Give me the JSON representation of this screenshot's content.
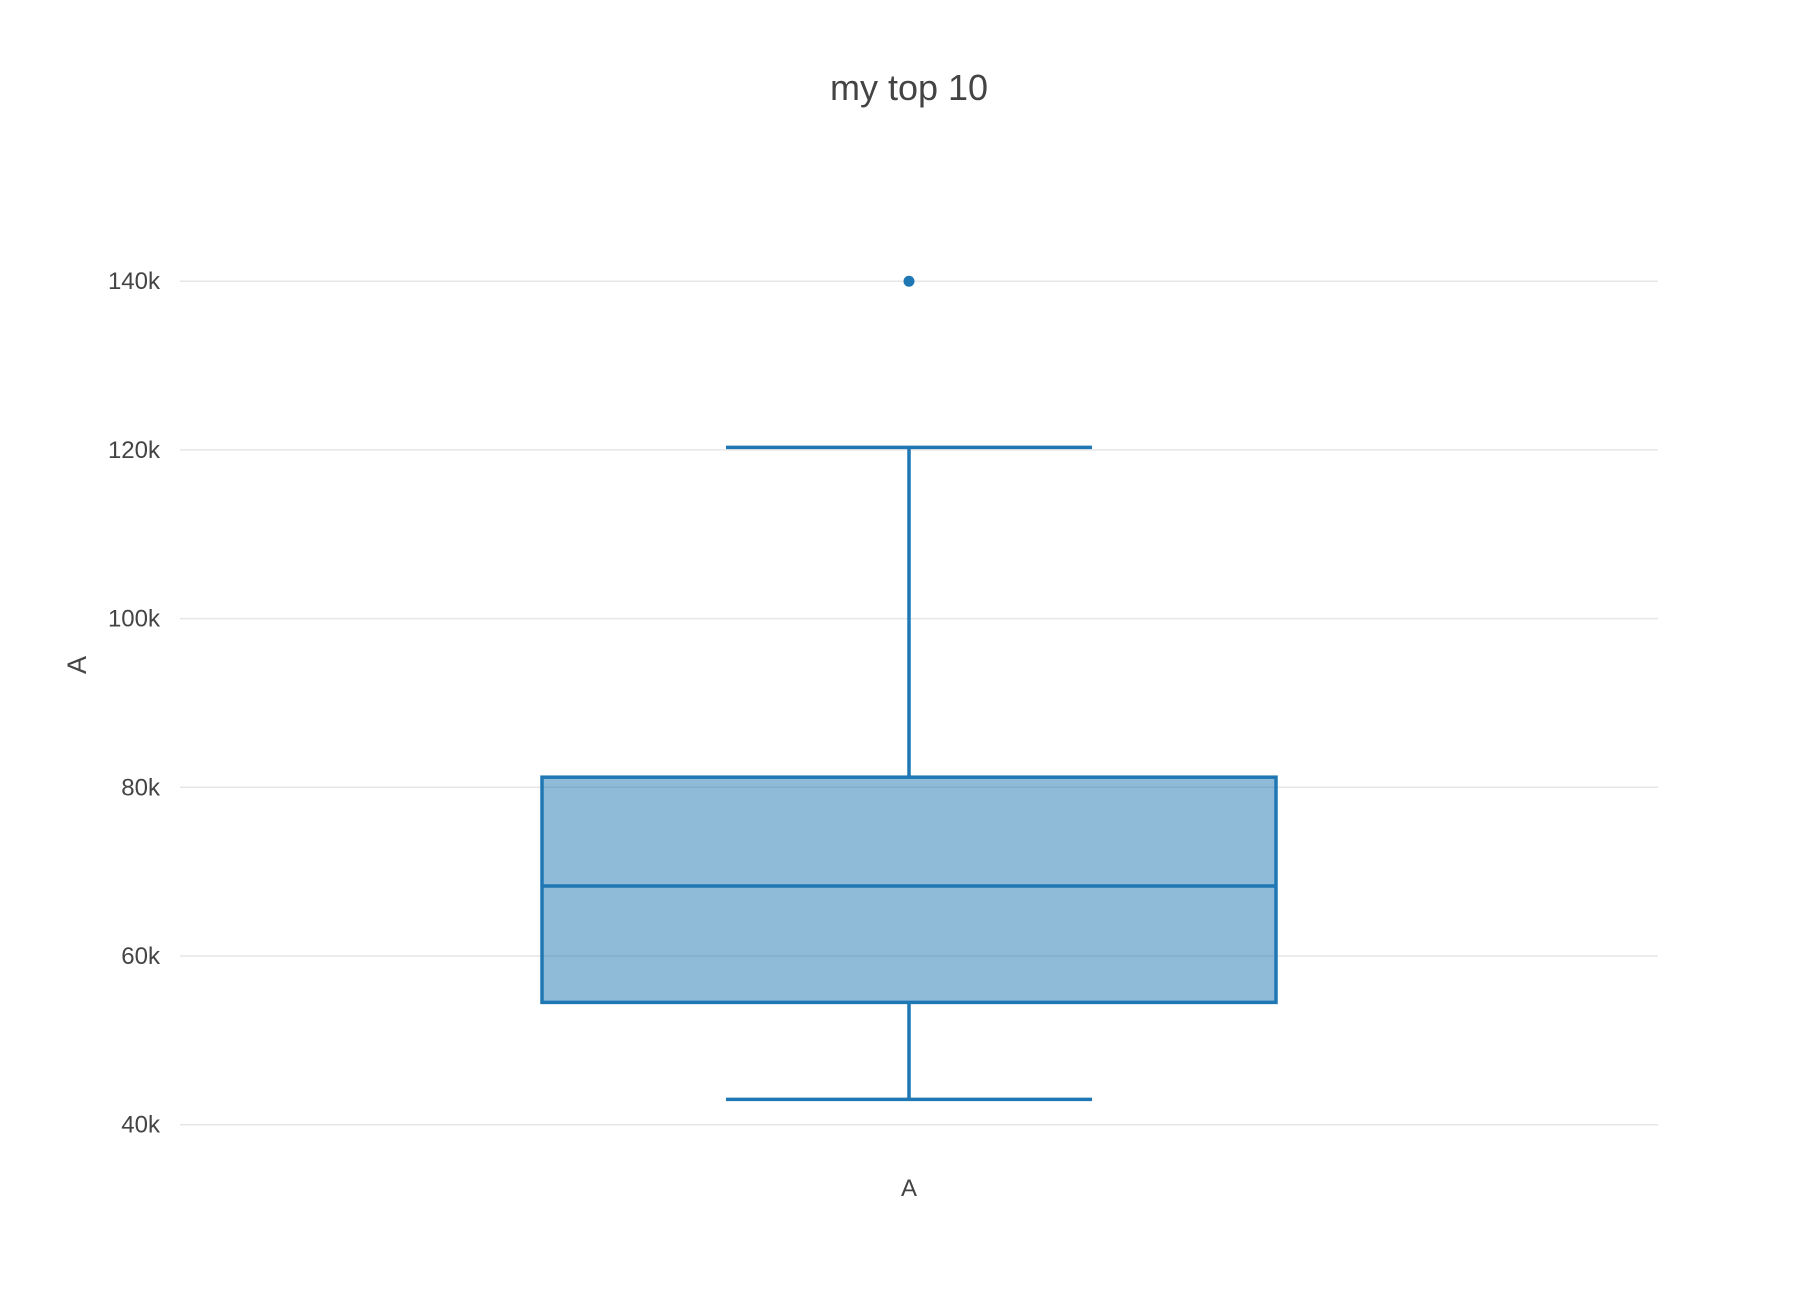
{
  "chart_data": {
    "type": "box",
    "title": "my top 10",
    "xlabel": "",
    "ylabel": "A",
    "categories": [
      "A"
    ],
    "ylim": [
      37000,
      152000
    ],
    "yticks": [
      40000,
      60000,
      80000,
      100000,
      120000,
      140000
    ],
    "ytick_labels": [
      "40k",
      "60k",
      "80k",
      "100k",
      "120k",
      "140k"
    ],
    "grid": true,
    "series": [
      {
        "name": "A",
        "lower_whisker": 43000,
        "q1": 54500,
        "median": 68300,
        "q3": 81200,
        "upper_whisker": 120300,
        "outliers": [
          140000
        ]
      }
    ],
    "colors": {
      "line": "#1f77b4",
      "fill": "#1f77b4",
      "fill_opacity": 0.5,
      "grid": "#e6e6e6",
      "text": "#444444"
    }
  }
}
